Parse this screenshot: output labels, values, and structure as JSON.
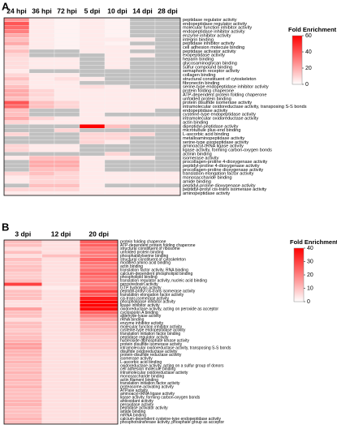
{
  "chart_data": [
    {
      "type": "heatmap",
      "panel_label": "A",
      "x": [
        "24 hpi",
        "36 hpi",
        "72 hpi",
        "5 dpi",
        "10 dpi",
        "14 dpi",
        "28 dpi"
      ],
      "categories": [
        "peptidase regulator activity",
        "endopeptidase regulator activity",
        "molecular function inhibitor activity",
        "endopeptidase inhibitor activity",
        "enzyme inhibitor activity",
        "integrin binding",
        "peptidase inhibitor activity",
        "cell adhesion molecule binding",
        "peptidase activator activity",
        "exopeptidase activity",
        "heparin binding",
        "glycosaminoglycan binding",
        "sulfur compound binding",
        "semaphorin receptor activity",
        "collagen binding",
        "structural constituent of cytoskeleton",
        "fibronectin binding",
        "serine-type endopeptidase inhibitor activity",
        "protein folding chaperone",
        "ATP-dependent protein folding chaperone",
        "unfolded protein binding",
        "protein disulfide isomerase activity",
        "intramolecular oxidoreductase activity, transposing S-S bonds",
        "endopeptidase activity",
        "cysteine-type endopeptidase activity",
        "intramolecular oxidoreductase activity",
        "actin binding",
        "dipeptidyl-peptidase activity",
        "microtubule plus-end binding",
        "L-ascorbic acid binding",
        "metalloaminopeptidase activity",
        "serine-type exopeptidase activity",
        "aminoacyl-tRNA ligase activity",
        "ligase activity, forming carbon-oxygen bonds",
        "actinin binding",
        "isomerase activity",
        "procollagen-proline 4-dioxygenase activity",
        "peptidyl-proline 4-dioxygenase activity",
        "procollagen-proline dioxygenase activity",
        "translation elongation factor activity",
        "monosaccharide binding",
        "amide binding",
        "peptidyl-proline dioxygenase activity",
        "peptidyl-prolyl cis-trans isomerase activity",
        "aminopeptidase activity"
      ],
      "values": [
        [
          25,
          5,
          3,
          5,
          3,
          null,
          null
        ],
        [
          40,
          5,
          3,
          5,
          3,
          null,
          null
        ],
        [
          35,
          5,
          3,
          5,
          3,
          null,
          null
        ],
        [
          30,
          5,
          3,
          5,
          3,
          null,
          null
        ],
        [
          20,
          5,
          3,
          5,
          3,
          null,
          null
        ],
        [
          15,
          5,
          3,
          5,
          5,
          5,
          null
        ],
        [
          20,
          5,
          3,
          5,
          3,
          null,
          null
        ],
        [
          10,
          5,
          3,
          5,
          5,
          5,
          null
        ],
        [
          15,
          null,
          null,
          5,
          5,
          null,
          null
        ],
        [
          10,
          null,
          null,
          null,
          5,
          5,
          null
        ],
        [
          8,
          5,
          5,
          null,
          5,
          null,
          null
        ],
        [
          8,
          5,
          5,
          null,
          5,
          null,
          null
        ],
        [
          8,
          5,
          5,
          null,
          5,
          null,
          null
        ],
        [
          5,
          null,
          null,
          null,
          null,
          null,
          null
        ],
        [
          10,
          5,
          5,
          null,
          null,
          null,
          null
        ],
        [
          15,
          5,
          8,
          5,
          null,
          null,
          null
        ],
        [
          10,
          5,
          5,
          null,
          null,
          null,
          null
        ],
        [
          15,
          5,
          5,
          8,
          5,
          null,
          null
        ],
        [
          20,
          10,
          5,
          5,
          5,
          5,
          5
        ],
        [
          20,
          10,
          5,
          5,
          5,
          5,
          5
        ],
        [
          15,
          8,
          5,
          5,
          5,
          5,
          5
        ],
        [
          40,
          15,
          10,
          5,
          5,
          5,
          5
        ],
        [
          35,
          15,
          10,
          5,
          5,
          5,
          5
        ],
        [
          15,
          null,
          null,
          5,
          5,
          5,
          null
        ],
        [
          15,
          null,
          null,
          5,
          null,
          null,
          null
        ],
        [
          20,
          10,
          5,
          5,
          5,
          5,
          5
        ],
        [
          10,
          5,
          5,
          5,
          5,
          5,
          5
        ],
        [
          null,
          null,
          null,
          60,
          15,
          null,
          null
        ],
        [
          null,
          null,
          10,
          null,
          null,
          null,
          null
        ],
        [
          10,
          null,
          null,
          10,
          10,
          10,
          null
        ],
        [
          null,
          null,
          null,
          10,
          10,
          null,
          null
        ],
        [
          null,
          null,
          null,
          10,
          5,
          null,
          null
        ],
        [
          10,
          5,
          5,
          null,
          null,
          null,
          null
        ],
        [
          10,
          5,
          5,
          null,
          null,
          null,
          null
        ],
        [
          null,
          null,
          null,
          null,
          10,
          null,
          null
        ],
        [
          5,
          15,
          15,
          5,
          5,
          5,
          null
        ],
        [
          null,
          20,
          20,
          5,
          null,
          null,
          null
        ],
        [
          null,
          20,
          20,
          5,
          null,
          null,
          null
        ],
        [
          null,
          15,
          15,
          5,
          null,
          null,
          null
        ],
        [
          10,
          15,
          10,
          5,
          5,
          5,
          5
        ],
        [
          5,
          10,
          10,
          5,
          5,
          5,
          5
        ],
        [
          5,
          10,
          10,
          5,
          5,
          5,
          5
        ],
        [
          null,
          15,
          15,
          5,
          null,
          null,
          null
        ],
        [
          10,
          10,
          10,
          5,
          5,
          5,
          5
        ],
        [
          5,
          5,
          5,
          5,
          5,
          5,
          5
        ]
      ],
      "colorbar_title": "Fold Enrichment",
      "clim": [
        0,
        60
      ],
      "cticks": [
        0,
        20,
        40,
        60
      ],
      "colors": [
        "#ffffff",
        "#ff0000"
      ],
      "na_color": "#c0c0c0"
    },
    {
      "type": "heatmap",
      "panel_label": "B",
      "x": [
        "3 dpi",
        "12 dpi",
        "20 dpi"
      ],
      "categories": [
        "protein folding chaperone",
        "ATP-dependent protein folding chaperone",
        "structural constituent of ribosome",
        "unfolded protein binding",
        "phosphatidylserine binding",
        "structural constituent of cytoskeleton",
        "modified amino acid binding",
        "actin binding",
        "translation factor activity, RNA binding",
        "calcium-dependent phospholipid binding",
        "phospholipid binding",
        "translation regulator activity, nucleic acid binding",
        "peroxiredoxin activity",
        "GTP hydrolysis activity",
        "peptidyl-prolyl cis-trans isomerase activity",
        "translation elongation factor activity",
        "cis-trans isomerase activity",
        "phospholipase inhibitor activity",
        "lipase inhibitor activity",
        "oxidoreductase activity, acting on peroxide as acceptor",
        "cyclosporin A binding",
        "aldehyde-lyase activity",
        "rRNA binding",
        "enzyme inhibitor activity",
        "molecular function inhibitor activity",
        "cysteine-type endopeptidase activity",
        "translation initiation factor binding",
        "peptidase regulator activity",
        "nucleoside diphosphate kinase activity",
        "protein disulfide isomerase activity",
        "intramolecular oxidoreductase activity, transposing S-S bonds",
        "disulfide oxidoreductase activity",
        "protein-disulfide reductase activity",
        "isomerase activity",
        "L-ascorbic acid binding",
        "oxidoreductase activity, acting on a sulfur group of donors",
        "cell adhesion molecule binding",
        "intramolecular oxidoreductase activity",
        "monosaccharide binding",
        "actin filament binding",
        "translation initiation factor activity",
        "proteasome-activating activity",
        "ATPase activity",
        "aminoacyl-tRNA ligase activity",
        "ligase activity, forming carbon-oxygen bonds",
        "antioxidant activity",
        "peroxidase activity",
        "peptidase activator activity",
        "amide binding",
        "mRNA binding",
        "calcium-dependent cysteine-type endopeptidase activity",
        "phosphotransferase activity, phosphate group as acceptor"
      ],
      "values": [
        [
          10,
          5,
          25
        ],
        [
          10,
          5,
          25
        ],
        [
          5,
          5,
          20
        ],
        [
          10,
          5,
          22
        ],
        [
          5,
          10,
          20
        ],
        [
          10,
          5,
          25
        ],
        [
          8,
          5,
          22
        ],
        [
          10,
          5,
          20
        ],
        [
          10,
          5,
          22
        ],
        [
          8,
          5,
          25
        ],
        [
          8,
          5,
          22
        ],
        [
          10,
          5,
          22
        ],
        [
          30,
          5,
          20
        ],
        [
          5,
          3,
          22
        ],
        [
          10,
          5,
          30
        ],
        [
          10,
          5,
          25
        ],
        [
          10,
          5,
          35
        ],
        [
          5,
          5,
          40
        ],
        [
          5,
          5,
          40
        ],
        [
          15,
          5,
          38
        ],
        [
          10,
          5,
          25
        ],
        [
          10,
          5,
          20
        ],
        [
          5,
          5,
          15
        ],
        [
          10,
          5,
          12
        ],
        [
          10,
          5,
          12
        ],
        [
          8,
          5,
          10
        ],
        [
          10,
          5,
          10
        ],
        [
          10,
          5,
          8
        ],
        [
          12,
          5,
          8
        ],
        [
          15,
          5,
          8
        ],
        [
          15,
          5,
          8
        ],
        [
          12,
          5,
          6
        ],
        [
          12,
          5,
          6
        ],
        [
          10,
          5,
          5
        ],
        [
          12,
          5,
          5
        ],
        [
          10,
          5,
          5
        ],
        [
          10,
          5,
          5
        ],
        [
          12,
          5,
          5
        ],
        [
          10,
          5,
          5
        ],
        [
          12,
          5,
          5
        ],
        [
          10,
          5,
          5
        ],
        [
          12,
          5,
          5
        ],
        [
          10,
          5,
          5
        ],
        [
          10,
          5,
          5
        ],
        [
          10,
          5,
          5
        ],
        [
          12,
          5,
          5
        ],
        [
          12,
          5,
          5
        ],
        [
          10,
          5,
          5
        ],
        [
          10,
          5,
          5
        ],
        [
          10,
          5,
          5
        ],
        [
          12,
          5,
          5
        ],
        [
          10,
          5,
          5
        ]
      ],
      "colorbar_title": "Fold Enrichment",
      "clim": [
        0,
        40
      ],
      "cticks": [
        0,
        10,
        20,
        30,
        40
      ],
      "colors": [
        "#ffffff",
        "#ff0000"
      ],
      "na_color": "#c0c0c0"
    }
  ]
}
